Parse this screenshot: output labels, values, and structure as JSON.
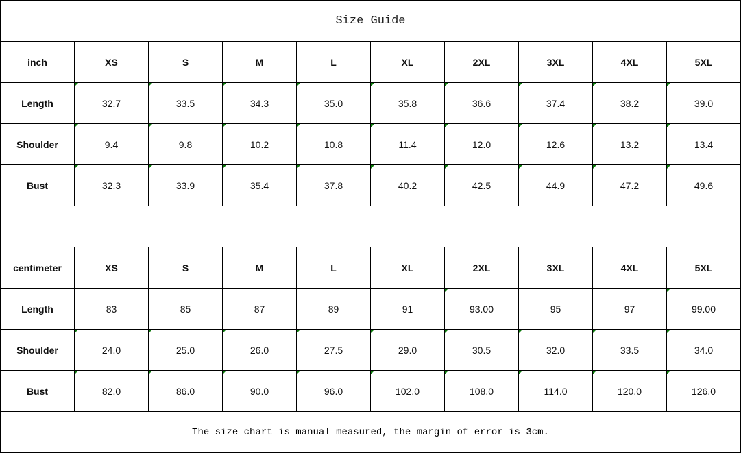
{
  "title": "Size Guide",
  "tables": [
    {
      "unit": "inch",
      "sizes": [
        "XS",
        "S",
        "M",
        "L",
        "XL",
        "2XL",
        "3XL",
        "4XL",
        "5XL"
      ],
      "rows": [
        {
          "label": "Length",
          "values": [
            "32.7",
            "33.5",
            "34.3",
            "35.0",
            "35.8",
            "36.6",
            "37.4",
            "38.2",
            "39.0"
          ]
        },
        {
          "label": "Shoulder",
          "values": [
            "9.4",
            "9.8",
            "10.2",
            "10.8",
            "11.4",
            "12.0",
            "12.6",
            "13.2",
            "13.4"
          ]
        },
        {
          "label": "Bust",
          "values": [
            "32.3",
            "33.9",
            "35.4",
            "37.8",
            "40.2",
            "42.5",
            "44.9",
            "47.2",
            "49.6"
          ]
        }
      ]
    },
    {
      "unit": "centimeter",
      "sizes": [
        "XS",
        "S",
        "M",
        "L",
        "XL",
        "2XL",
        "3XL",
        "4XL",
        "5XL"
      ],
      "rows": [
        {
          "label": "Length",
          "values": [
            "83",
            "85",
            "87",
            "89",
            "91",
            "93.00",
            "95",
            "97",
            "99.00"
          ]
        },
        {
          "label": "Shoulder",
          "values": [
            "24.0",
            "25.0",
            "26.0",
            "27.5",
            "29.0",
            "30.5",
            "32.0",
            "33.5",
            "34.0"
          ]
        },
        {
          "label": "Bust",
          "values": [
            "82.0",
            "86.0",
            "90.0",
            "96.0",
            "102.0",
            "108.0",
            "114.0",
            "120.0",
            "126.0"
          ]
        }
      ]
    }
  ],
  "note": "The size chart is manual measured, the margin of error is 3cm.",
  "colors": {
    "cell_marker": "#0a7a0a",
    "border": "#000000"
  }
}
